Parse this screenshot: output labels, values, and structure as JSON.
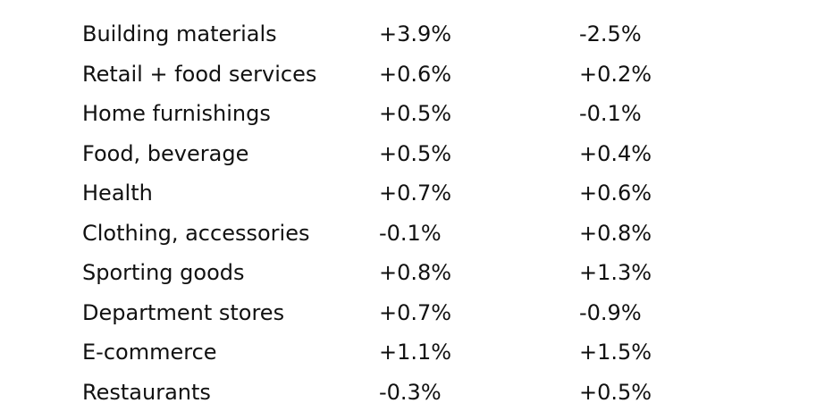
{
  "table": {
    "rows": [
      {
        "category": "Building materials",
        "col1": "+3.9%",
        "col2": "-2.5%"
      },
      {
        "category": "Retail + food services",
        "col1": "+0.6%",
        "col2": "+0.2%"
      },
      {
        "category": "Home furnishings",
        "col1": "+0.5%",
        "col2": "-0.1%"
      },
      {
        "category": "Food, beverage",
        "col1": "+0.5%",
        "col2": "+0.4%"
      },
      {
        "category": "Health",
        "col1": "+0.7%",
        "col2": "+0.6%"
      },
      {
        "category": "Clothing, accessories",
        "col1": "-0.1%",
        "col2": "+0.8%"
      },
      {
        "category": "Sporting goods",
        "col1": "+0.8%",
        "col2": "+1.3%"
      },
      {
        "category": "Department stores",
        "col1": "+0.7%",
        "col2": "-0.9%"
      },
      {
        "category": "E-commerce",
        "col1": "+1.1%",
        "col2": "+1.5%"
      },
      {
        "category": "Restaurants",
        "col1": "-0.3%",
        "col2": "+0.5%"
      }
    ]
  }
}
